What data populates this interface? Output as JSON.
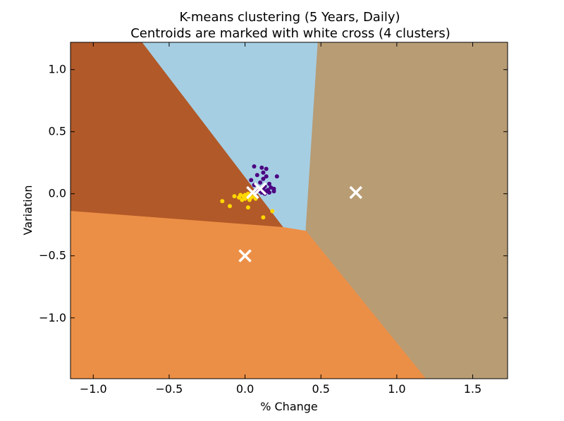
{
  "chart_data": {
    "type": "scatter",
    "title": "K-means clustering (5 Years, Daily)",
    "subtitle": "Centroids are marked with white cross (4 clusters)",
    "xlabel": "% Change",
    "ylabel": "Variation",
    "xlim": [
      -1.15,
      1.73
    ],
    "ylim": [
      -1.49,
      1.22
    ],
    "x_ticks": [
      -1.0,
      -0.5,
      0.0,
      0.5,
      1.0,
      1.5
    ],
    "x_tick_labels": [
      "−1.0",
      "−0.5",
      "0.0",
      "0.5",
      "1.0",
      "1.5"
    ],
    "y_ticks": [
      1.0,
      0.5,
      0.0,
      -0.5,
      -1.0
    ],
    "y_tick_labels": [
      "1.0",
      "0.5",
      "0.0",
      "−0.5",
      "−1.0"
    ],
    "grid": false,
    "regions": [
      {
        "color": "#a6cee3",
        "polygon": [
          [
            -0.68,
            1.22
          ],
          [
            0.48,
            1.22
          ],
          [
            0.4,
            -0.3
          ],
          [
            0.25,
            -0.27
          ]
        ]
      },
      {
        "color": "#b15928",
        "polygon": [
          [
            -1.15,
            1.22
          ],
          [
            -0.68,
            1.22
          ],
          [
            0.25,
            -0.27
          ],
          [
            -1.15,
            -0.14
          ]
        ]
      },
      {
        "color": "#b89c74",
        "polygon": [
          [
            0.48,
            1.22
          ],
          [
            1.73,
            1.22
          ],
          [
            1.73,
            -1.49
          ],
          [
            1.19,
            -1.49
          ],
          [
            0.4,
            -0.3
          ]
        ]
      },
      {
        "color": "#ec8f46",
        "polygon": [
          [
            -1.15,
            -0.14
          ],
          [
            0.25,
            -0.27
          ],
          [
            0.4,
            -0.3
          ],
          [
            1.19,
            -1.49
          ],
          [
            -1.15,
            -1.49
          ]
        ]
      }
    ],
    "series": [
      {
        "color": "#4b0082",
        "points": [
          [
            0.06,
            0.22
          ],
          [
            0.11,
            0.21
          ],
          [
            0.14,
            0.2
          ],
          [
            0.12,
            0.17
          ],
          [
            0.08,
            0.15
          ],
          [
            0.21,
            0.14
          ],
          [
            0.14,
            0.14
          ],
          [
            0.12,
            0.12
          ],
          [
            0.04,
            0.11
          ],
          [
            0.1,
            0.09
          ],
          [
            0.16,
            0.08
          ],
          [
            0.06,
            0.07
          ],
          [
            0.13,
            0.06
          ],
          [
            0.17,
            0.05
          ],
          [
            0.19,
            0.04
          ],
          [
            0.08,
            0.04
          ],
          [
            0.12,
            0.04
          ],
          [
            0.15,
            0.03
          ],
          [
            0.19,
            0.02
          ],
          [
            0.14,
            0.02
          ],
          [
            0.1,
            0.02
          ],
          [
            0.07,
            0.02
          ],
          [
            0.11,
            0.01
          ],
          [
            0.16,
            0.01
          ],
          [
            0.13,
            0.0
          ]
        ]
      },
      {
        "color": "#ffd700",
        "points": [
          [
            -0.07,
            -0.02
          ],
          [
            -0.03,
            -0.01
          ],
          [
            0.0,
            -0.01
          ],
          [
            0.02,
            0.0
          ],
          [
            0.05,
            0.01
          ],
          [
            -0.01,
            -0.02
          ],
          [
            0.03,
            -0.02
          ],
          [
            0.06,
            -0.02
          ],
          [
            -0.04,
            -0.03
          ],
          [
            0.01,
            -0.03
          ],
          [
            0.04,
            -0.03
          ],
          [
            0.07,
            -0.04
          ],
          [
            0.0,
            -0.04
          ],
          [
            -0.02,
            -0.05
          ],
          [
            0.03,
            -0.05
          ],
          [
            -0.15,
            -0.06
          ],
          [
            -0.1,
            -0.1
          ],
          [
            0.02,
            -0.11
          ],
          [
            0.18,
            -0.14
          ],
          [
            0.12,
            -0.19
          ]
        ]
      }
    ],
    "centroids": [
      [
        0.1,
        0.04
      ],
      [
        0.05,
        0.01
      ],
      [
        0.73,
        0.01
      ],
      [
        0.0,
        -0.5
      ]
    ],
    "colors": {
      "centroid": "#ffffff",
      "axes": "#000000"
    }
  }
}
